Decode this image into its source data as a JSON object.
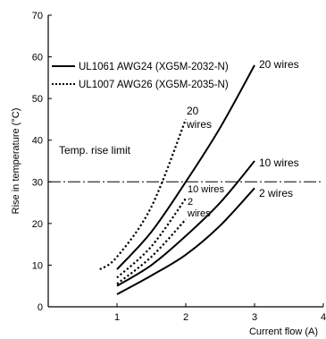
{
  "chart_data": {
    "type": "line",
    "xlabel": "Current flow (A)",
    "ylabel": "Rise in temperature (°C)",
    "xlim": [
      0,
      4
    ],
    "ylim": [
      0,
      70
    ],
    "xticks": [
      1,
      2,
      3,
      4
    ],
    "yticks": [
      0,
      10,
      20,
      30,
      40,
      50,
      60,
      70
    ],
    "grid": false,
    "legend_position": "top-left",
    "legend": [
      {
        "label": "UL1061 AWG24 (XG5M-2032-N)",
        "style": "solid"
      },
      {
        "label": "UL1007 AWG26 (XG5M-2035-N)",
        "style": "dotted"
      }
    ],
    "reference_line": {
      "label": "Temp. rise limit",
      "y": 30
    },
    "series": [
      {
        "cable": "UL1061 AWG24",
        "style": "solid",
        "x": [
          1,
          1.5,
          2,
          2.5,
          3
        ],
        "y": [
          3,
          7.5,
          12.5,
          19.5,
          28.5
        ]
      },
      {
        "cable": "UL1061 AWG24",
        "style": "solid",
        "x": [
          1,
          1.5,
          2,
          2.5,
          3
        ],
        "y": [
          5,
          10,
          17,
          25,
          35
        ]
      },
      {
        "cable": "UL1061 AWG24",
        "style": "solid",
        "x": [
          1,
          1.5,
          2,
          2.5,
          3
        ],
        "y": [
          9,
          18,
          30,
          43,
          58
        ]
      },
      {
        "cable": "UL1007 AWG26",
        "style": "dotted",
        "x": [
          1,
          1.5,
          2
        ],
        "y": [
          5.5,
          12,
          21
        ]
      },
      {
        "cable": "UL1007 AWG26",
        "style": "dotted",
        "x": [
          1,
          1.5,
          2
        ],
        "y": [
          7,
          14.5,
          26
        ]
      },
      {
        "cable": "UL1007 AWG26",
        "style": "dotted",
        "x": [
          0.75,
          1,
          1.5,
          2
        ],
        "y": [
          9,
          12,
          24,
          45
        ]
      }
    ],
    "annotations": [
      {
        "text": "20 wires",
        "x": 3.03,
        "y": 58
      },
      {
        "text": "10 wires",
        "x": 3.03,
        "y": 35
      },
      {
        "text": "2 wires",
        "x": 3.03,
        "y": 28.5
      },
      {
        "text": "20",
        "x": 2.04,
        "y": 48
      },
      {
        "text": "wires",
        "x": 2.04,
        "y": 43.5
      },
      {
        "text": "10 wires",
        "x": 2.04,
        "y": 28.5
      },
      {
        "text": "2",
        "x": 2.04,
        "y": 24.5
      },
      {
        "text": "wires",
        "x": 2.04,
        "y": 20.5
      }
    ]
  }
}
